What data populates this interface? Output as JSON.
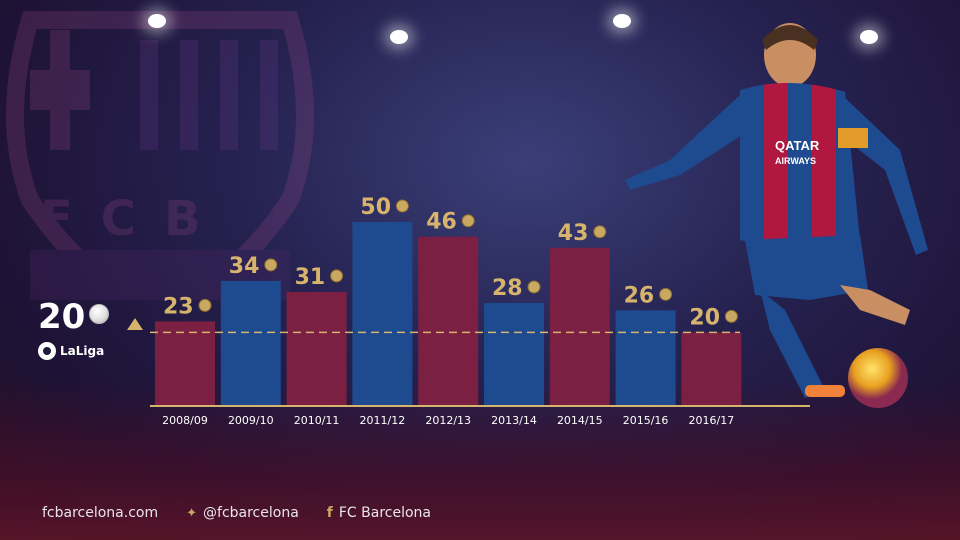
{
  "chart_data": {
    "type": "bar",
    "categories": [
      "2008/09",
      "2009/10",
      "2010/11",
      "2011/12",
      "2012/13",
      "2013/14",
      "2014/15",
      "2015/16",
      "2016/17"
    ],
    "values": [
      23,
      34,
      31,
      50,
      46,
      28,
      43,
      26,
      20
    ],
    "bar_colors": [
      "#7b1f43",
      "#1e4a8f",
      "#7b1f43",
      "#1e4a8f",
      "#7b1f43",
      "#1e4a8f",
      "#7b1f43",
      "#1e4a8f",
      "#7b1f43"
    ],
    "value_label_color": "#d6b46d",
    "reference_line": {
      "value": 20,
      "label": "20",
      "color": "#d6b46d"
    },
    "ylim": [
      0,
      50
    ],
    "title": "",
    "xlabel": "",
    "ylabel": ""
  },
  "badge": {
    "league": "LaLiga"
  },
  "footer": {
    "website": "fcbarcelona.com",
    "twitter": "@fcbarcelona",
    "facebook": "FC Barcelona",
    "twitter_icon": "twitter-icon",
    "facebook_icon": "facebook-icon"
  },
  "crest_letters": "FCB",
  "colors": {
    "blaugrana_blue": "#1e4a8f",
    "blaugrana_red": "#7b1f43",
    "gold": "#d6b46d"
  }
}
